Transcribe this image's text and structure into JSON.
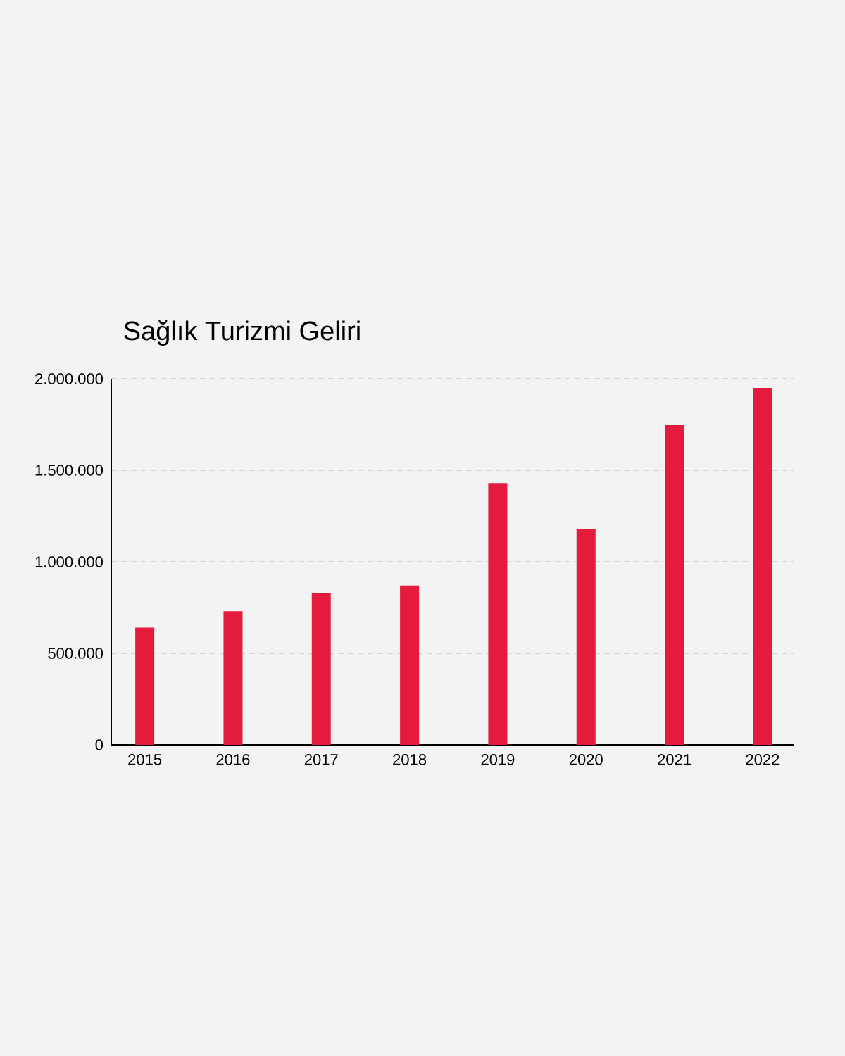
{
  "chart_data": {
    "type": "bar",
    "title": "Sağlık Turizmi Geliri",
    "categories": [
      "2015",
      "2016",
      "2017",
      "2018",
      "2019",
      "2020",
      "2021",
      "2022"
    ],
    "values": [
      640000,
      730000,
      830000,
      870000,
      1430000,
      1180000,
      1750000,
      1950000
    ],
    "color": "#e41b3d",
    "ylim": [
      0,
      2000000
    ],
    "yticks": [
      0,
      {
        "value": 500000,
        "label": "500.000"
      },
      {
        "value": 1000000,
        "label": "1.000.000"
      },
      {
        "value": 1500000,
        "label": "1.500.000"
      },
      {
        "value": 2000000,
        "label": "2.000.000"
      }
    ],
    "grid": "y"
  }
}
